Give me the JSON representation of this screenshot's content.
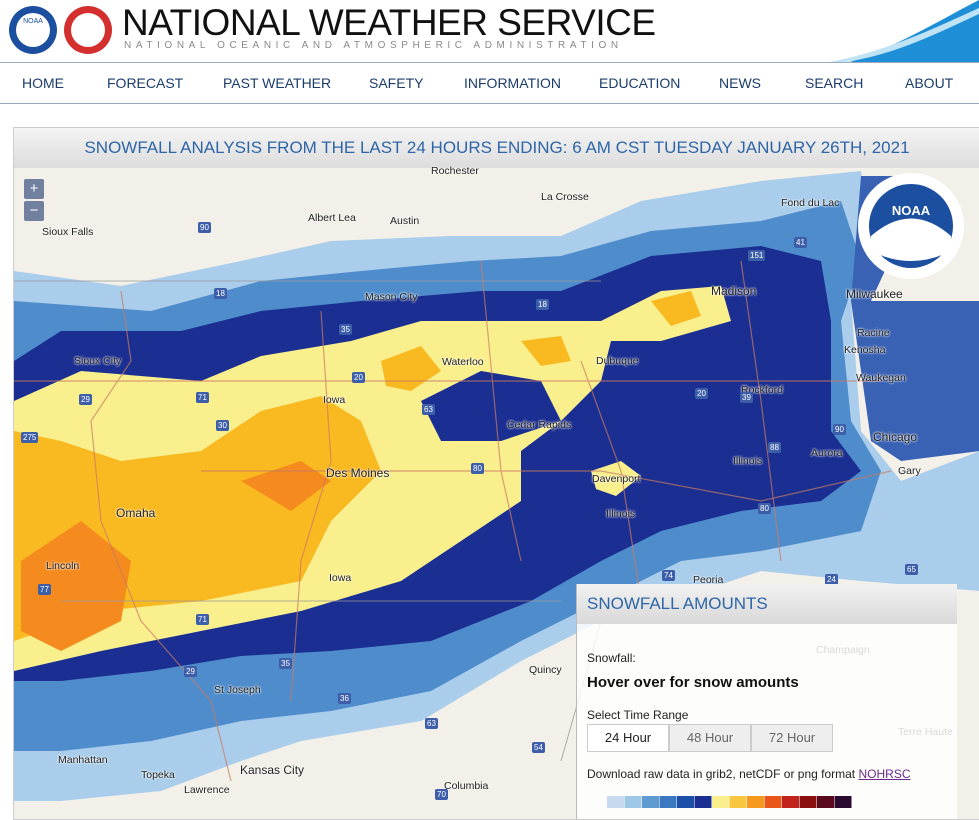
{
  "header": {
    "title": "NATIONAL WEATHER SERVICE",
    "subtitle": "NATIONAL OCEANIC AND ATMOSPHERIC ADMINISTRATION",
    "logo_text": "NOAA"
  },
  "nav": [
    "HOME",
    "FORECAST",
    "PAST WEATHER",
    "SAFETY",
    "INFORMATION",
    "EDUCATION",
    "NEWS",
    "SEARCH",
    "ABOUT"
  ],
  "map": {
    "title": "SNOWFALL ANALYSIS FROM THE LAST 24 HOURS ENDING: 6 AM CST TUESDAY JANUARY 26TH, 2021",
    "zoom_in": "+",
    "zoom_out": "−",
    "places": [
      "Rochester",
      "La Crosse",
      "Fond du Lac",
      "Albert Lea",
      "Austin",
      "Sioux Falls",
      "Madison",
      "Milwaukee",
      "Mason City",
      "Racine",
      "Kenosha",
      "Sioux City",
      "Waterloo",
      "Dubuque",
      "Waukegan",
      "Rockford",
      "Iowa",
      "Cedar Rapids",
      "Chicago",
      "Illinois",
      "Aurora",
      "Gary",
      "Des Moines",
      "Davenport",
      "Omaha",
      "Illinois",
      "Lincoln",
      "Iowa",
      "Peoria",
      "Champaign",
      "Quincy",
      "St Joseph",
      "Terre Haute",
      "Manhattan",
      "Topeka",
      "Kansas City",
      "Lawrence",
      "Columbia"
    ],
    "highways": [
      "90",
      "18",
      "35",
      "18",
      "151",
      "41",
      "20",
      "71",
      "63",
      "30",
      "29",
      "275",
      "20",
      "39",
      "88",
      "90",
      "80",
      "80",
      "74",
      "24",
      "65",
      "77",
      "71",
      "29",
      "35",
      "36",
      "63",
      "54",
      "70"
    ]
  },
  "legend_panel": {
    "title": "SNOWFALL AMOUNTS",
    "snowfall_label": "Snowfall:",
    "hover_text": "Hover over for snow amounts",
    "range_label": "Select Time Range",
    "ranges": [
      "24 Hour",
      "48 Hour",
      "72 Hour"
    ],
    "download_text": "Download raw data in grib2, netCDF or png format",
    "download_link": "NOHRSC"
  }
}
